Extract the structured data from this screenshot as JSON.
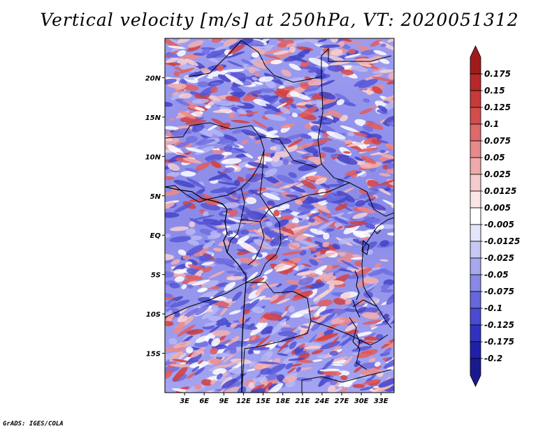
{
  "title": "Vertical velocity [m/s] at 250hPa, VT: 2020051312",
  "credit": "GrADS: IGES/COLA",
  "map": {
    "lat_labels": [
      "20N",
      "15N",
      "10N",
      "5N",
      "EQ",
      "5S",
      "10S",
      "15S"
    ],
    "lat_values": [
      20,
      15,
      10,
      5,
      0,
      -5,
      -10,
      -15
    ],
    "lon_labels": [
      "3E",
      "6E",
      "9E",
      "12E",
      "15E",
      "18E",
      "21E",
      "24E",
      "27E",
      "30E",
      "33E"
    ],
    "lon_values": [
      3,
      6,
      9,
      12,
      15,
      18,
      21,
      24,
      27,
      30,
      33
    ],
    "lon_range": [
      0,
      35
    ],
    "lat_range": [
      -20,
      25
    ]
  },
  "colorbar": {
    "labels": [
      "0.175",
      "0.15",
      "0.125",
      "0.1",
      "0.075",
      "0.05",
      "0.025",
      "0.0125",
      "0.005",
      "-0.005",
      "-0.0125",
      "-0.025",
      "-0.05",
      "-0.075",
      "-0.1",
      "-0.125",
      "-0.175",
      "-0.2"
    ],
    "colors": [
      "#a01c1c",
      "#b82828",
      "#c83a3a",
      "#d44c4c",
      "#de6a6a",
      "#e68a8a",
      "#eeaaaa",
      "#f5cccc",
      "#fbe6e6",
      "#ffffff",
      "#e4e4fb",
      "#c8c8f5",
      "#a8a8ee",
      "#8888e6",
      "#6666dd",
      "#4a4ad4",
      "#3232c2",
      "#2020aa",
      "#1a1a90"
    ]
  }
}
